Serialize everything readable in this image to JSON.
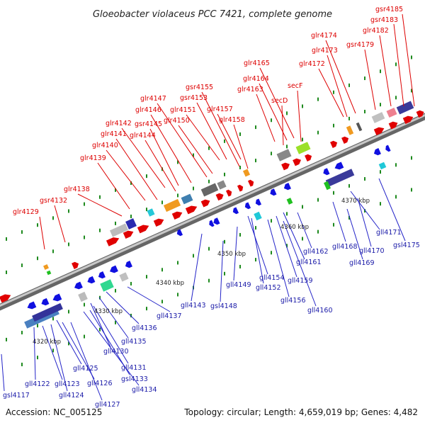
{
  "title": "Gloeobacter violaceus PCC 7421, complete genome",
  "footer": {
    "accession": "Accession: NC_005125",
    "summary": "Topology: circular; Length: 4,659,019 bp; Genes: 4,482"
  },
  "colors": {
    "forward": "#e00000",
    "reverse": "#1010e0",
    "forward_label": "#dd0000",
    "reverse_label": "#1a1aa8",
    "axis": "#888888"
  },
  "position_labels": [
    "4320 kbp",
    "4330 kbp",
    "4340 kbp",
    "4350 kbp",
    "4360 kbp",
    "4370 kbp"
  ],
  "top_genes": [
    "gsr4185",
    "gsr4183",
    "glr4182",
    "glr4174",
    "gsr4179",
    "glr4173",
    "glr4172",
    "glr4165",
    "glr4164",
    "glr4163",
    "secF",
    "secD",
    "gsr4155",
    "glr4147",
    "gsr4153",
    "glr4146",
    "glr4151",
    "glr4157",
    "glr4142",
    "gsr4145",
    "glr4150",
    "glr4158",
    "glr4141",
    "glr4144",
    "glr4140",
    "glr4139",
    "glr4138",
    "gsr4132",
    "glr4129"
  ],
  "bottom_genes": [
    "gll4171",
    "gsl4175",
    "gll4168",
    "gll4170",
    "gll4169",
    "gll4162",
    "gll4161",
    "gll4154",
    "gll4159",
    "gll4152",
    "gll4149",
    "gll4156",
    "gll4160",
    "gll4143",
    "gsl4148",
    "gll4137",
    "gll4136",
    "gll4135",
    "gll4130",
    "gll4131",
    "gsl4133",
    "gll4134",
    "gll4125",
    "gll4126",
    "gll4127",
    "gll4122",
    "gll4123",
    "gll4124",
    "gsl4117"
  ]
}
